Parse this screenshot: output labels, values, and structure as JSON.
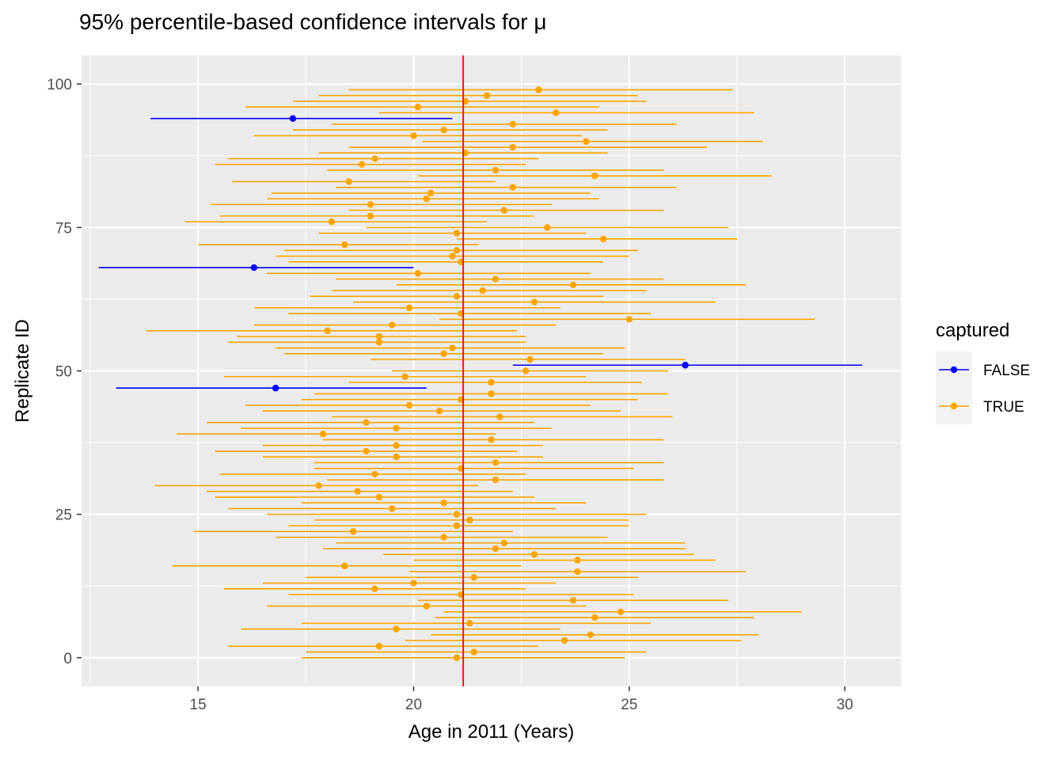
{
  "chart_data": {
    "type": "errorbar",
    "title": "95% percentile-based confidence intervals for μ",
    "xlabel": "Age in 2011 (Years)",
    "ylabel": "Replicate ID",
    "xlim": [
      12.3,
      31.3
    ],
    "ylim": [
      -5,
      105
    ],
    "x_ticks": [
      15,
      20,
      25,
      30
    ],
    "y_ticks": [
      0,
      25,
      50,
      75,
      100
    ],
    "grid": true,
    "reference_line": {
      "x": 21.15,
      "color": "#e41a1c"
    },
    "legend": {
      "title": "captured",
      "placement": "right",
      "entries": [
        {
          "label": "FALSE",
          "color": "#0000ff"
        },
        {
          "label": "TRUE",
          "color": "#ffa500"
        }
      ]
    },
    "colors": {
      "FALSE": "#0000ff",
      "TRUE": "#ffa500",
      "reference": "#e41a1c",
      "panel": "#ebebeb"
    },
    "series": [
      {
        "id": 0,
        "estimate": 21.0,
        "lower": 17.4,
        "upper": 24.9,
        "captured": true
      },
      {
        "id": 1,
        "estimate": 21.4,
        "lower": 17.5,
        "upper": 25.4,
        "captured": true
      },
      {
        "id": 2,
        "estimate": 19.2,
        "lower": 15.7,
        "upper": 22.9,
        "captured": true
      },
      {
        "id": 3,
        "estimate": 23.5,
        "lower": 19.8,
        "upper": 27.6,
        "captured": true
      },
      {
        "id": 4,
        "estimate": 24.1,
        "lower": 20.4,
        "upper": 28.0,
        "captured": true
      },
      {
        "id": 5,
        "estimate": 19.6,
        "lower": 16.0,
        "upper": 23.4,
        "captured": true
      },
      {
        "id": 6,
        "estimate": 21.3,
        "lower": 17.4,
        "upper": 25.5,
        "captured": true
      },
      {
        "id": 7,
        "estimate": 24.2,
        "lower": 20.5,
        "upper": 27.9,
        "captured": true
      },
      {
        "id": 8,
        "estimate": 24.8,
        "lower": 20.7,
        "upper": 29.0,
        "captured": true
      },
      {
        "id": 9,
        "estimate": 20.3,
        "lower": 16.6,
        "upper": 24.0,
        "captured": true
      },
      {
        "id": 10,
        "estimate": 23.7,
        "lower": 20.1,
        "upper": 27.3,
        "captured": true
      },
      {
        "id": 11,
        "estimate": 21.1,
        "lower": 17.1,
        "upper": 25.1,
        "captured": true
      },
      {
        "id": 12,
        "estimate": 19.1,
        "lower": 15.6,
        "upper": 22.6,
        "captured": true
      },
      {
        "id": 13,
        "estimate": 20.0,
        "lower": 16.5,
        "upper": 23.3,
        "captured": true
      },
      {
        "id": 14,
        "estimate": 21.4,
        "lower": 17.5,
        "upper": 25.2,
        "captured": true
      },
      {
        "id": 15,
        "estimate": 23.8,
        "lower": 19.9,
        "upper": 27.7,
        "captured": true
      },
      {
        "id": 16,
        "estimate": 18.4,
        "lower": 14.4,
        "upper": 22.5,
        "captured": true
      },
      {
        "id": 17,
        "estimate": 23.8,
        "lower": 20.0,
        "upper": 27.0,
        "captured": true
      },
      {
        "id": 18,
        "estimate": 22.8,
        "lower": 19.3,
        "upper": 26.5,
        "captured": true
      },
      {
        "id": 19,
        "estimate": 21.9,
        "lower": 17.9,
        "upper": 26.3,
        "captured": true
      },
      {
        "id": 20,
        "estimate": 22.1,
        "lower": 18.2,
        "upper": 26.3,
        "captured": true
      },
      {
        "id": 21,
        "estimate": 20.7,
        "lower": 16.8,
        "upper": 24.5,
        "captured": true
      },
      {
        "id": 22,
        "estimate": 18.6,
        "lower": 14.9,
        "upper": 22.3,
        "captured": true
      },
      {
        "id": 23,
        "estimate": 21.0,
        "lower": 17.1,
        "upper": 25.0,
        "captured": true
      },
      {
        "id": 24,
        "estimate": 21.3,
        "lower": 17.7,
        "upper": 25.0,
        "captured": true
      },
      {
        "id": 25,
        "estimate": 21.0,
        "lower": 16.6,
        "upper": 25.4,
        "captured": true
      },
      {
        "id": 26,
        "estimate": 19.5,
        "lower": 15.7,
        "upper": 23.3,
        "captured": true
      },
      {
        "id": 27,
        "estimate": 20.7,
        "lower": 17.4,
        "upper": 24.0,
        "captured": true
      },
      {
        "id": 28,
        "estimate": 19.2,
        "lower": 15.4,
        "upper": 22.8,
        "captured": true
      },
      {
        "id": 29,
        "estimate": 18.7,
        "lower": 15.2,
        "upper": 22.3,
        "captured": true
      },
      {
        "id": 30,
        "estimate": 17.8,
        "lower": 14.0,
        "upper": 21.5,
        "captured": true
      },
      {
        "id": 31,
        "estimate": 21.9,
        "lower": 18.0,
        "upper": 25.8,
        "captured": true
      },
      {
        "id": 32,
        "estimate": 19.1,
        "lower": 15.5,
        "upper": 22.6,
        "captured": true
      },
      {
        "id": 33,
        "estimate": 21.1,
        "lower": 17.7,
        "upper": 25.1,
        "captured": true
      },
      {
        "id": 34,
        "estimate": 21.9,
        "lower": 17.7,
        "upper": 25.8,
        "captured": true
      },
      {
        "id": 35,
        "estimate": 19.6,
        "lower": 16.5,
        "upper": 23.0,
        "captured": true
      },
      {
        "id": 36,
        "estimate": 18.9,
        "lower": 15.4,
        "upper": 22.4,
        "captured": true
      },
      {
        "id": 37,
        "estimate": 19.6,
        "lower": 16.5,
        "upper": 23.0,
        "captured": true
      },
      {
        "id": 38,
        "estimate": 21.8,
        "lower": 17.9,
        "upper": 25.8,
        "captured": true
      },
      {
        "id": 39,
        "estimate": 17.9,
        "lower": 14.5,
        "upper": 21.9,
        "captured": true
      },
      {
        "id": 40,
        "estimate": 19.6,
        "lower": 16.0,
        "upper": 23.2,
        "captured": true
      },
      {
        "id": 41,
        "estimate": 18.9,
        "lower": 15.2,
        "upper": 22.8,
        "captured": true
      },
      {
        "id": 42,
        "estimate": 22.0,
        "lower": 18.1,
        "upper": 26.0,
        "captured": true
      },
      {
        "id": 43,
        "estimate": 20.6,
        "lower": 16.5,
        "upper": 24.8,
        "captured": true
      },
      {
        "id": 44,
        "estimate": 19.9,
        "lower": 16.1,
        "upper": 24.1,
        "captured": true
      },
      {
        "id": 45,
        "estimate": 21.1,
        "lower": 17.4,
        "upper": 25.2,
        "captured": true
      },
      {
        "id": 46,
        "estimate": 21.8,
        "lower": 17.7,
        "upper": 25.9,
        "captured": true
      },
      {
        "id": 47,
        "estimate": 16.8,
        "lower": 13.1,
        "upper": 20.3,
        "captured": false
      },
      {
        "id": 48,
        "estimate": 21.8,
        "lower": 18.5,
        "upper": 25.3,
        "captured": true
      },
      {
        "id": 49,
        "estimate": 19.8,
        "lower": 15.6,
        "upper": 24.0,
        "captured": true
      },
      {
        "id": 50,
        "estimate": 22.6,
        "lower": 19.5,
        "upper": 25.9,
        "captured": true
      },
      {
        "id": 51,
        "estimate": 26.3,
        "lower": 22.3,
        "upper": 30.4,
        "captured": false
      },
      {
        "id": 52,
        "estimate": 22.7,
        "lower": 19.0,
        "upper": 26.3,
        "captured": true
      },
      {
        "id": 53,
        "estimate": 20.7,
        "lower": 17.0,
        "upper": 24.4,
        "captured": true
      },
      {
        "id": 54,
        "estimate": 20.9,
        "lower": 16.8,
        "upper": 24.9,
        "captured": true
      },
      {
        "id": 55,
        "estimate": 19.2,
        "lower": 15.7,
        "upper": 22.6,
        "captured": true
      },
      {
        "id": 56,
        "estimate": 19.2,
        "lower": 15.9,
        "upper": 22.6,
        "captured": true
      },
      {
        "id": 57,
        "estimate": 18.0,
        "lower": 13.8,
        "upper": 22.4,
        "captured": true
      },
      {
        "id": 58,
        "estimate": 19.5,
        "lower": 16.3,
        "upper": 23.3,
        "captured": true
      },
      {
        "id": 59,
        "estimate": 25.0,
        "lower": 20.6,
        "upper": 29.3,
        "captured": true
      },
      {
        "id": 60,
        "estimate": 21.1,
        "lower": 17.1,
        "upper": 25.5,
        "captured": true
      },
      {
        "id": 61,
        "estimate": 19.9,
        "lower": 16.3,
        "upper": 23.4,
        "captured": true
      },
      {
        "id": 62,
        "estimate": 22.8,
        "lower": 18.6,
        "upper": 27.0,
        "captured": true
      },
      {
        "id": 63,
        "estimate": 21.0,
        "lower": 17.6,
        "upper": 24.4,
        "captured": true
      },
      {
        "id": 64,
        "estimate": 21.6,
        "lower": 18.1,
        "upper": 25.4,
        "captured": true
      },
      {
        "id": 65,
        "estimate": 23.7,
        "lower": 19.6,
        "upper": 27.7,
        "captured": true
      },
      {
        "id": 66,
        "estimate": 21.9,
        "lower": 18.2,
        "upper": 25.8,
        "captured": true
      },
      {
        "id": 67,
        "estimate": 20.1,
        "lower": 16.6,
        "upper": 24.1,
        "captured": true
      },
      {
        "id": 68,
        "estimate": 16.3,
        "lower": 12.7,
        "upper": 20.0,
        "captured": false
      },
      {
        "id": 69,
        "estimate": 21.1,
        "lower": 17.1,
        "upper": 24.4,
        "captured": true
      },
      {
        "id": 70,
        "estimate": 20.9,
        "lower": 16.8,
        "upper": 25.0,
        "captured": true
      },
      {
        "id": 71,
        "estimate": 21.0,
        "lower": 17.0,
        "upper": 25.2,
        "captured": true
      },
      {
        "id": 72,
        "estimate": 18.4,
        "lower": 15.0,
        "upper": 21.5,
        "captured": true
      },
      {
        "id": 73,
        "estimate": 24.4,
        "lower": 21.0,
        "upper": 27.5,
        "captured": true
      },
      {
        "id": 74,
        "estimate": 21.0,
        "lower": 17.8,
        "upper": 24.0,
        "captured": true
      },
      {
        "id": 75,
        "estimate": 23.1,
        "lower": 18.9,
        "upper": 27.3,
        "captured": true
      },
      {
        "id": 76,
        "estimate": 18.1,
        "lower": 14.7,
        "upper": 21.7,
        "captured": true
      },
      {
        "id": 77,
        "estimate": 19.0,
        "lower": 15.5,
        "upper": 22.8,
        "captured": true
      },
      {
        "id": 78,
        "estimate": 22.1,
        "lower": 18.5,
        "upper": 25.8,
        "captured": true
      },
      {
        "id": 79,
        "estimate": 19.0,
        "lower": 15.3,
        "upper": 23.2,
        "captured": true
      },
      {
        "id": 80,
        "estimate": 20.3,
        "lower": 16.6,
        "upper": 24.3,
        "captured": true
      },
      {
        "id": 81,
        "estimate": 20.4,
        "lower": 16.7,
        "upper": 24.1,
        "captured": true
      },
      {
        "id": 82,
        "estimate": 22.3,
        "lower": 18.2,
        "upper": 26.1,
        "captured": true
      },
      {
        "id": 83,
        "estimate": 18.5,
        "lower": 15.8,
        "upper": 21.9,
        "captured": true
      },
      {
        "id": 84,
        "estimate": 24.2,
        "lower": 20.1,
        "upper": 28.3,
        "captured": true
      },
      {
        "id": 85,
        "estimate": 21.9,
        "lower": 18.0,
        "upper": 25.8,
        "captured": true
      },
      {
        "id": 86,
        "estimate": 18.8,
        "lower": 15.4,
        "upper": 22.6,
        "captured": true
      },
      {
        "id": 87,
        "estimate": 19.1,
        "lower": 15.7,
        "upper": 22.9,
        "captured": true
      },
      {
        "id": 88,
        "estimate": 21.2,
        "lower": 17.8,
        "upper": 24.5,
        "captured": true
      },
      {
        "id": 89,
        "estimate": 22.3,
        "lower": 18.5,
        "upper": 26.8,
        "captured": true
      },
      {
        "id": 90,
        "estimate": 24.0,
        "lower": 20.2,
        "upper": 28.1,
        "captured": true
      },
      {
        "id": 91,
        "estimate": 20.0,
        "lower": 16.3,
        "upper": 23.9,
        "captured": true
      },
      {
        "id": 92,
        "estimate": 20.7,
        "lower": 17.2,
        "upper": 24.5,
        "captured": true
      },
      {
        "id": 93,
        "estimate": 22.3,
        "lower": 18.1,
        "upper": 26.1,
        "captured": true
      },
      {
        "id": 94,
        "estimate": 17.2,
        "lower": 13.9,
        "upper": 20.9,
        "captured": false
      },
      {
        "id": 95,
        "estimate": 23.3,
        "lower": 19.2,
        "upper": 27.9,
        "captured": true
      },
      {
        "id": 96,
        "estimate": 20.1,
        "lower": 16.1,
        "upper": 24.3,
        "captured": true
      },
      {
        "id": 97,
        "estimate": 21.2,
        "lower": 17.2,
        "upper": 25.4,
        "captured": true
      },
      {
        "id": 98,
        "estimate": 21.7,
        "lower": 17.8,
        "upper": 25.2,
        "captured": true
      },
      {
        "id": 99,
        "estimate": 22.9,
        "lower": 18.5,
        "upper": 27.4,
        "captured": true
      }
    ]
  }
}
